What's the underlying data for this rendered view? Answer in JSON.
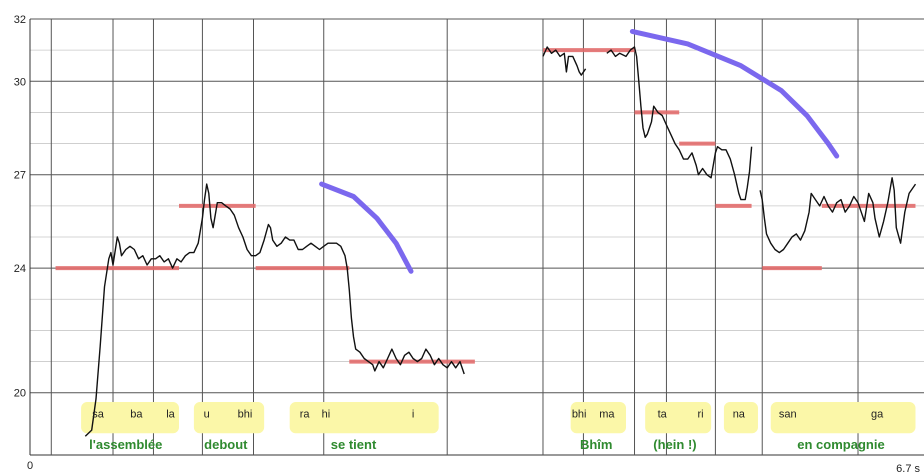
{
  "chart_data": {
    "type": "line",
    "x_start_label": "0",
    "x_end_label": "6.7 s",
    "ylim": [
      20,
      32
    ],
    "yticks": [
      20,
      24,
      27,
      30,
      32
    ],
    "colors": {
      "pitch": "#111111",
      "target": "#e36d6d",
      "trend": "#7b68ee",
      "syllable_box": "#fbf7a8",
      "word": "#2f8a2f"
    },
    "targets": [
      {
        "x0": 0.12,
        "x1": 0.7,
        "y": 24.0
      },
      {
        "x0": 0.7,
        "x1": 1.06,
        "y": 26.0
      },
      {
        "x0": 1.06,
        "x1": 1.5,
        "y": 24.0
      },
      {
        "x0": 1.5,
        "x1": 2.09,
        "y": 21.0
      },
      {
        "x0": 2.41,
        "x1": 2.84,
        "y": 31.0
      },
      {
        "x0": 2.84,
        "x1": 3.05,
        "y": 29.0
      },
      {
        "x0": 3.05,
        "x1": 3.22,
        "y": 28.0
      },
      {
        "x0": 3.22,
        "x1": 3.39,
        "y": 26.0
      },
      {
        "x0": 3.44,
        "x1": 3.72,
        "y": 24.0
      },
      {
        "x0": 3.72,
        "x1": 4.16,
        "y": 26.0
      }
    ],
    "trends": [
      [
        [
          1.37,
          26.7
        ],
        [
          1.52,
          26.3
        ],
        [
          1.63,
          25.6
        ],
        [
          1.72,
          24.8
        ],
        [
          1.79,
          23.9
        ]
      ],
      [
        [
          2.83,
          31.6
        ],
        [
          3.09,
          31.2
        ],
        [
          3.34,
          30.5
        ],
        [
          3.53,
          29.7
        ],
        [
          3.65,
          28.9
        ],
        [
          3.75,
          28.0
        ],
        [
          3.79,
          27.6
        ]
      ]
    ],
    "pitch_segments": [
      [
        [
          0.26,
          18.6
        ],
        [
          0.29,
          18.8
        ],
        [
          0.31,
          19.8
        ],
        [
          0.33,
          21.5
        ],
        [
          0.35,
          23.4
        ],
        [
          0.37,
          24.3
        ],
        [
          0.38,
          24.5
        ],
        [
          0.39,
          24.1
        ],
        [
          0.41,
          25.0
        ],
        [
          0.42,
          24.8
        ],
        [
          0.43,
          24.4
        ],
        [
          0.45,
          24.6
        ],
        [
          0.47,
          24.7
        ],
        [
          0.49,
          24.6
        ],
        [
          0.51,
          24.3
        ],
        [
          0.53,
          24.4
        ],
        [
          0.55,
          24.1
        ],
        [
          0.57,
          24.3
        ],
        [
          0.59,
          24.3
        ],
        [
          0.61,
          24.4
        ],
        [
          0.63,
          24.2
        ],
        [
          0.65,
          24.3
        ],
        [
          0.67,
          24.0
        ],
        [
          0.69,
          24.3
        ],
        [
          0.71,
          24.2
        ],
        [
          0.73,
          24.4
        ],
        [
          0.75,
          24.5
        ],
        [
          0.77,
          24.5
        ],
        [
          0.79,
          24.8
        ],
        [
          0.81,
          25.6
        ],
        [
          0.82,
          26.2
        ],
        [
          0.83,
          26.7
        ],
        [
          0.84,
          26.4
        ],
        [
          0.85,
          25.6
        ],
        [
          0.86,
          25.3
        ],
        [
          0.87,
          25.7
        ],
        [
          0.88,
          26.1
        ],
        [
          0.9,
          26.1
        ],
        [
          0.92,
          26.0
        ],
        [
          0.94,
          25.9
        ],
        [
          0.96,
          25.7
        ],
        [
          0.98,
          25.3
        ],
        [
          1.0,
          25.0
        ],
        [
          1.02,
          24.6
        ],
        [
          1.04,
          24.4
        ],
        [
          1.06,
          24.4
        ],
        [
          1.08,
          24.5
        ],
        [
          1.1,
          24.9
        ],
        [
          1.12,
          25.4
        ],
        [
          1.13,
          25.3
        ],
        [
          1.14,
          24.9
        ],
        [
          1.16,
          24.7
        ],
        [
          1.18,
          24.8
        ],
        [
          1.2,
          25.0
        ],
        [
          1.22,
          24.9
        ],
        [
          1.24,
          24.9
        ],
        [
          1.26,
          24.6
        ],
        [
          1.28,
          24.6
        ],
        [
          1.3,
          24.7
        ],
        [
          1.32,
          24.8
        ],
        [
          1.34,
          24.7
        ],
        [
          1.36,
          24.6
        ],
        [
          1.38,
          24.7
        ],
        [
          1.4,
          24.8
        ],
        [
          1.42,
          24.8
        ],
        [
          1.44,
          24.8
        ],
        [
          1.46,
          24.7
        ],
        [
          1.48,
          24.4
        ],
        [
          1.49,
          24.0
        ],
        [
          1.5,
          23.3
        ],
        [
          1.51,
          22.4
        ],
        [
          1.52,
          21.8
        ],
        [
          1.53,
          21.4
        ],
        [
          1.55,
          21.3
        ],
        [
          1.57,
          21.1
        ],
        [
          1.59,
          21.0
        ],
        [
          1.61,
          20.9
        ],
        [
          1.62,
          20.7
        ],
        [
          1.64,
          21.0
        ],
        [
          1.66,
          20.8
        ],
        [
          1.68,
          21.1
        ],
        [
          1.7,
          21.4
        ],
        [
          1.72,
          21.1
        ],
        [
          1.74,
          20.9
        ],
        [
          1.76,
          21.2
        ],
        [
          1.78,
          21.3
        ],
        [
          1.8,
          21.1
        ],
        [
          1.82,
          21.0
        ],
        [
          1.84,
          21.1
        ],
        [
          1.86,
          21.4
        ],
        [
          1.88,
          21.2
        ],
        [
          1.9,
          20.9
        ],
        [
          1.92,
          21.1
        ],
        [
          1.94,
          20.9
        ],
        [
          1.96,
          20.8
        ],
        [
          1.98,
          21.0
        ],
        [
          2.0,
          20.8
        ],
        [
          2.02,
          21.0
        ],
        [
          2.04,
          20.6
        ]
      ],
      [
        [
          2.41,
          30.8
        ],
        [
          2.43,
          31.1
        ],
        [
          2.45,
          30.9
        ],
        [
          2.47,
          31.0
        ],
        [
          2.49,
          30.8
        ],
        [
          2.51,
          30.9
        ],
        [
          2.52,
          30.3
        ],
        [
          2.53,
          30.8
        ],
        [
          2.55,
          30.8
        ],
        [
          2.57,
          30.5
        ],
        [
          2.58,
          30.3
        ],
        [
          2.59,
          30.2
        ],
        [
          2.61,
          30.4
        ]
      ],
      [
        [
          2.71,
          30.9
        ],
        [
          2.73,
          31.0
        ],
        [
          2.75,
          30.8
        ],
        [
          2.77,
          30.9
        ],
        [
          2.8,
          30.8
        ],
        [
          2.82,
          31.0
        ],
        [
          2.84,
          31.1
        ],
        [
          2.85,
          30.8
        ],
        [
          2.86,
          30.0
        ],
        [
          2.87,
          29.2
        ],
        [
          2.88,
          28.5
        ],
        [
          2.89,
          28.2
        ],
        [
          2.9,
          28.3
        ],
        [
          2.92,
          28.7
        ],
        [
          2.93,
          29.2
        ],
        [
          2.95,
          29.0
        ],
        [
          2.97,
          28.9
        ],
        [
          2.99,
          28.6
        ],
        [
          3.01,
          28.3
        ],
        [
          3.03,
          28.0
        ],
        [
          3.05,
          27.8
        ],
        [
          3.07,
          27.5
        ],
        [
          3.09,
          27.5
        ],
        [
          3.11,
          27.7
        ],
        [
          3.13,
          27.3
        ],
        [
          3.14,
          27.0
        ],
        [
          3.16,
          27.2
        ],
        [
          3.18,
          27.0
        ],
        [
          3.2,
          26.9
        ],
        [
          3.22,
          27.7
        ],
        [
          3.23,
          27.9
        ],
        [
          3.25,
          27.8
        ],
        [
          3.27,
          27.8
        ],
        [
          3.29,
          27.5
        ],
        [
          3.31,
          27.0
        ],
        [
          3.33,
          26.4
        ],
        [
          3.34,
          26.2
        ],
        [
          3.36,
          26.2
        ],
        [
          3.37,
          26.6
        ],
        [
          3.38,
          27.1
        ],
        [
          3.39,
          27.9
        ]
      ],
      [
        [
          3.43,
          26.5
        ],
        [
          3.44,
          26.2
        ],
        [
          3.45,
          25.6
        ],
        [
          3.46,
          25.1
        ],
        [
          3.48,
          24.8
        ],
        [
          3.5,
          24.6
        ],
        [
          3.52,
          24.5
        ],
        [
          3.54,
          24.6
        ],
        [
          3.56,
          24.8
        ],
        [
          3.58,
          25.0
        ],
        [
          3.6,
          25.1
        ],
        [
          3.62,
          24.9
        ],
        [
          3.64,
          25.2
        ],
        [
          3.66,
          25.8
        ],
        [
          3.67,
          26.4
        ],
        [
          3.69,
          26.2
        ],
        [
          3.71,
          26.0
        ],
        [
          3.73,
          26.3
        ],
        [
          3.75,
          26.0
        ],
        [
          3.77,
          25.8
        ],
        [
          3.79,
          26.1
        ],
        [
          3.81,
          26.2
        ],
        [
          3.83,
          25.8
        ],
        [
          3.85,
          26.0
        ],
        [
          3.87,
          26.3
        ],
        [
          3.89,
          26.1
        ],
        [
          3.91,
          25.7
        ],
        [
          3.92,
          25.5
        ],
        [
          3.94,
          26.4
        ],
        [
          3.96,
          26.1
        ],
        [
          3.97,
          25.6
        ],
        [
          3.99,
          25.0
        ],
        [
          4.01,
          25.5
        ],
        [
          4.03,
          26.1
        ],
        [
          4.05,
          26.9
        ],
        [
          4.06,
          26.5
        ],
        [
          4.07,
          25.3
        ],
        [
          4.09,
          24.8
        ],
        [
          4.11,
          25.8
        ],
        [
          4.13,
          26.4
        ],
        [
          4.16,
          26.7
        ]
      ]
    ],
    "syllables": [
      {
        "text": "sa",
        "x": 0.32,
        "y": 19.2
      },
      {
        "text": "ba",
        "x": 0.5,
        "y": 19.2
      },
      {
        "text": "la",
        "x": 0.66,
        "y": 19.2
      },
      {
        "text": "u",
        "x": 0.83,
        "y": 19.2
      },
      {
        "text": "bhi",
        "x": 1.01,
        "y": 19.2
      },
      {
        "text": "ra",
        "x": 1.29,
        "y": 19.2
      },
      {
        "text": "hi",
        "x": 1.39,
        "y": 19.2
      },
      {
        "text": "i",
        "x": 1.8,
        "y": 19.2
      },
      {
        "text": "bhi",
        "x": 2.58,
        "y": 19.2
      },
      {
        "text": "ma",
        "x": 2.71,
        "y": 19.2
      },
      {
        "text": "ta",
        "x": 2.97,
        "y": 19.2
      },
      {
        "text": "ri",
        "x": 3.15,
        "y": 19.2
      },
      {
        "text": "na",
        "x": 3.33,
        "y": 19.2
      },
      {
        "text": "san",
        "x": 3.56,
        "y": 19.2
      },
      {
        "text": "ga",
        "x": 3.98,
        "y": 19.2
      }
    ],
    "syllable_boxes": [
      {
        "x0": 0.24,
        "x1": 0.7
      },
      {
        "x0": 0.77,
        "x1": 1.1
      },
      {
        "x0": 1.22,
        "x1": 1.92
      },
      {
        "x0": 2.54,
        "x1": 2.8
      },
      {
        "x0": 2.89,
        "x1": 3.2
      },
      {
        "x0": 3.26,
        "x1": 3.42
      },
      {
        "x0": 3.48,
        "x1": 4.16
      }
    ],
    "words": [
      {
        "text": "l'assemblée",
        "x": 0.45,
        "y": 18.2
      },
      {
        "text": "debout",
        "x": 0.92,
        "y": 18.2
      },
      {
        "text": "se  tient",
        "x": 1.52,
        "y": 18.2
      },
      {
        "text": "Bhîm",
        "x": 2.66,
        "y": 18.2
      },
      {
        "text": "(hein !)",
        "x": 3.03,
        "y": 18.2
      },
      {
        "text": "en  compagnie",
        "x": 3.81,
        "y": 18.2
      }
    ]
  }
}
